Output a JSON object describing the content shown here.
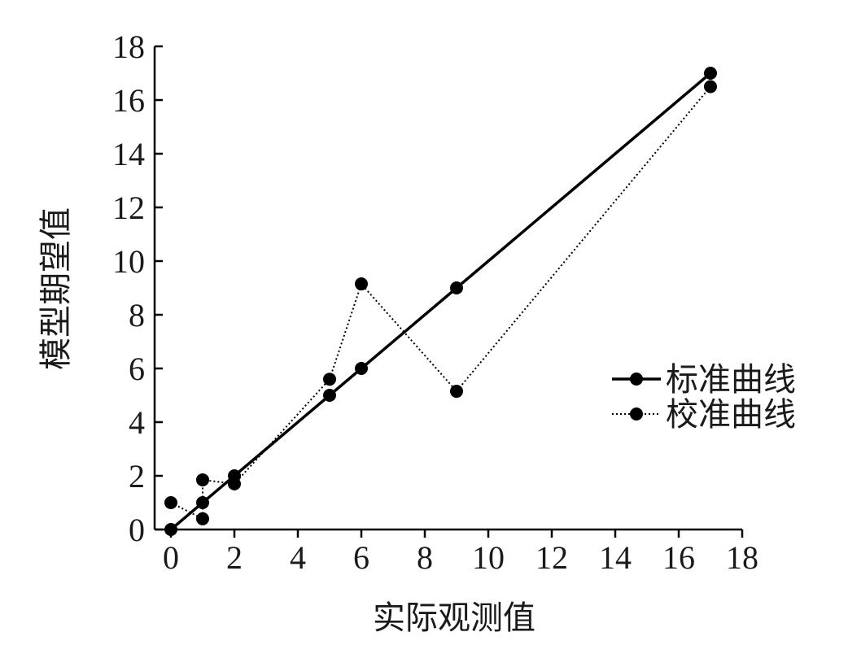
{
  "chart_data": {
    "type": "line",
    "xlabel": "实际观测值",
    "ylabel": "模型期望值",
    "xlim": [
      0,
      18
    ],
    "ylim": [
      0,
      18
    ],
    "xticks": [
      0,
      2,
      4,
      6,
      8,
      10,
      12,
      14,
      16,
      18
    ],
    "yticks": [
      0,
      2,
      4,
      6,
      8,
      10,
      12,
      14,
      16,
      18
    ],
    "grid": false,
    "legend_position": "right",
    "series": [
      {
        "name": "标准曲线",
        "style": "solid",
        "color": "#000000",
        "points": [
          [
            0,
            0
          ],
          [
            1,
            1
          ],
          [
            2,
            2
          ],
          [
            5,
            5
          ],
          [
            6,
            6
          ],
          [
            9,
            9
          ],
          [
            17,
            17
          ]
        ]
      },
      {
        "name": "校准曲线",
        "style": "dotted",
        "color": "#000000",
        "points": [
          [
            0,
            1.0
          ],
          [
            1,
            0.4
          ],
          [
            1,
            1.85
          ],
          [
            2,
            1.7
          ],
          [
            5,
            5.6
          ],
          [
            6,
            9.15
          ],
          [
            9,
            5.15
          ],
          [
            17,
            16.5
          ]
        ]
      }
    ]
  }
}
